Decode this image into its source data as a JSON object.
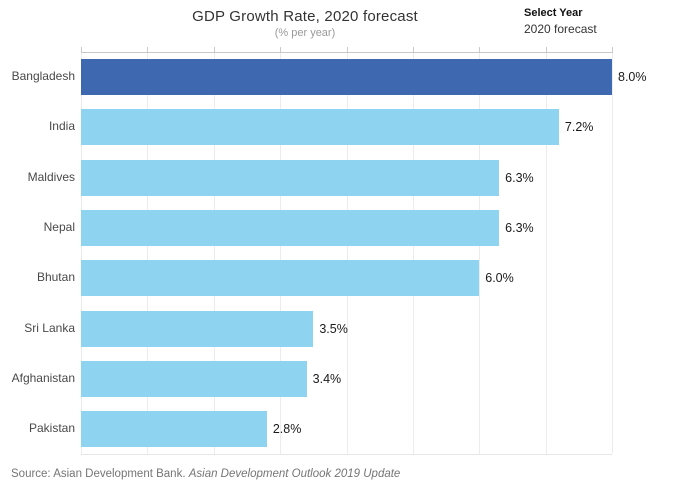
{
  "header": {
    "title": "GDP Growth Rate, 2020 forecast",
    "subtitle": "(% per year)",
    "year_selector": {
      "label": "Select Year",
      "value": "2020 forecast"
    }
  },
  "chart_data": {
    "type": "bar",
    "orientation": "horizontal",
    "title": "GDP Growth Rate, 2020 forecast",
    "subtitle": "(% per year)",
    "categories": [
      "Bangladesh",
      "India",
      "Maldives",
      "Nepal",
      "Bhutan",
      "Sri Lanka",
      "Afghanistan",
      "Pakistan"
    ],
    "values": [
      8.0,
      7.2,
      6.3,
      6.3,
      6.0,
      3.5,
      3.4,
      2.8
    ],
    "value_labels": [
      "8.0%",
      "7.2%",
      "6.3%",
      "6.3%",
      "6.0%",
      "3.5%",
      "3.4%",
      "2.8%"
    ],
    "xlim": [
      0,
      8
    ],
    "grid": true,
    "gridline_interval": 1,
    "highlight_category": "Bangladesh",
    "colors": {
      "highlight": "#3e69b1",
      "default": "#8ed3ef"
    }
  },
  "source": {
    "prefix": "Source: Asian Development Bank. ",
    "italic": "Asian Development Outlook 2019 Update"
  }
}
